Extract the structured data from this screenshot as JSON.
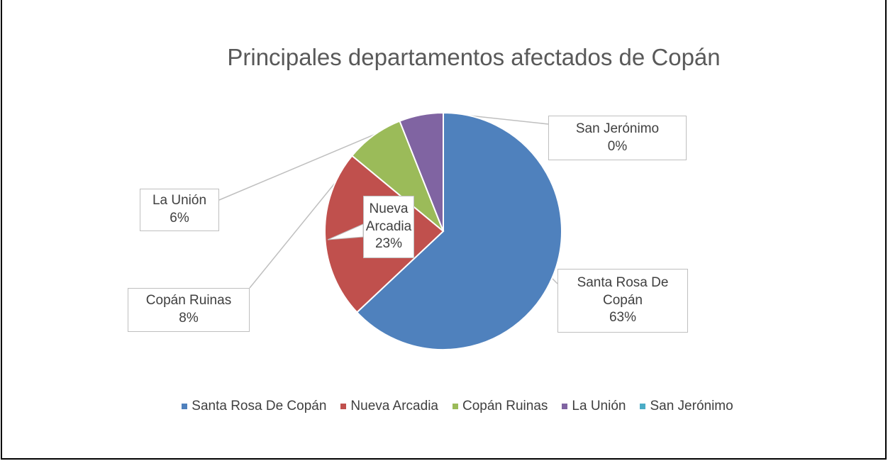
{
  "chart_data": {
    "type": "pie",
    "title": "Principales departamentos afectados de Copán",
    "categories": [
      "Santa Rosa De Copán",
      "Nueva Arcadia",
      "Copán Ruinas",
      "La Unión",
      "San Jerónimo"
    ],
    "values": [
      63,
      23,
      8,
      6,
      0
    ],
    "value_labels": [
      "63%",
      "23%",
      "8%",
      "6%",
      "0%"
    ],
    "colors": [
      "#4f81bd",
      "#c0504d",
      "#9bbb59",
      "#8064a2",
      "#4bacc6"
    ],
    "legend": "bottom"
  }
}
